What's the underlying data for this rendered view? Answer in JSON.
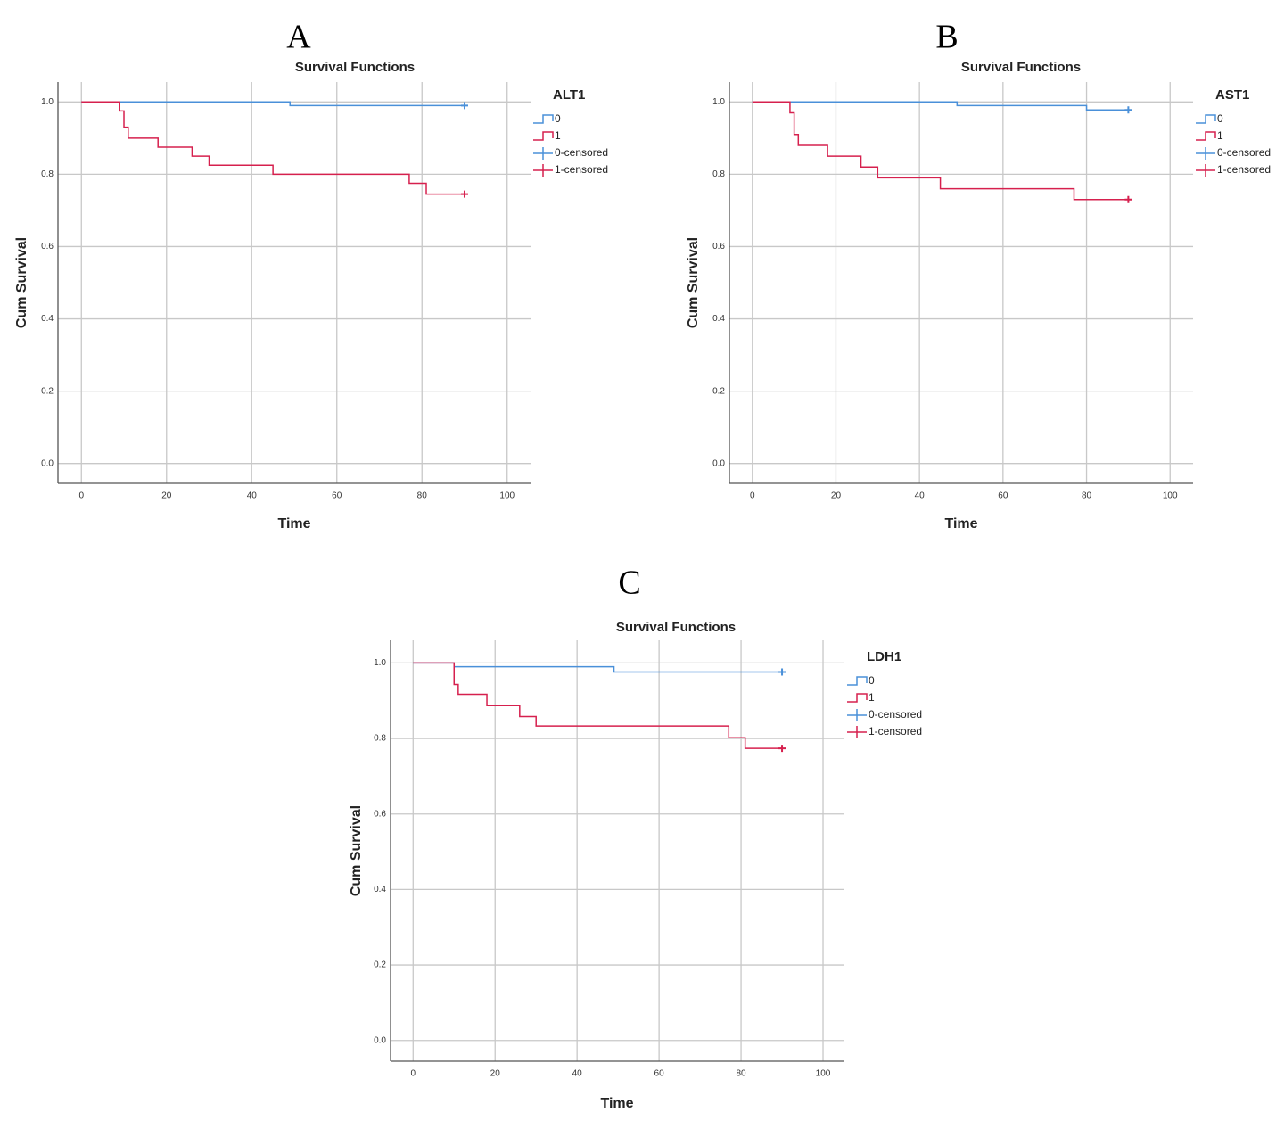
{
  "chart_data": [
    {
      "type": "line",
      "panel": "A",
      "title": "Survival Functions",
      "x_label": "Time",
      "y_label": "Cum Survival",
      "legend_title": "ALT1",
      "xlim": [
        -5.5,
        105.5
      ],
      "ylim": [
        -0.055,
        1.055
      ],
      "xticks": [
        0,
        20,
        40,
        60,
        80,
        100
      ],
      "yticks": [
        {
          "value": 0,
          "label": "0.0"
        },
        0.2,
        0.4,
        0.6,
        0.8,
        {
          "value": 1,
          "label": "1.0"
        }
      ],
      "grid": true,
      "series": [
        {
          "name": "0",
          "style": "step",
          "color": "#4a90d9",
          "x": [
            0,
            49,
            90
          ],
          "values": [
            1,
            0.99,
            0.99
          ]
        },
        {
          "name": "1",
          "style": "step",
          "color": "#d6204e",
          "x": [
            0,
            9,
            10,
            11,
            18,
            26,
            30,
            45,
            77,
            81,
            90
          ],
          "values": [
            1,
            0.975,
            0.93,
            0.9,
            0.875,
            0.85,
            0.825,
            0.8,
            0.775,
            0.745,
            0.745
          ]
        },
        {
          "name": "0-censored",
          "style": "censor",
          "color": "#4a90d9",
          "x": [
            90
          ],
          "values": [
            0.99
          ]
        },
        {
          "name": "1-censored",
          "style": "censor",
          "color": "#d6204e",
          "x": [
            90
          ],
          "values": [
            0.745
          ]
        }
      ]
    },
    {
      "type": "line",
      "panel": "B",
      "title": "Survival Functions",
      "x_label": "Time",
      "y_label": "Cum Survival",
      "legend_title": "AST1",
      "xlim": [
        -5.5,
        105.5
      ],
      "ylim": [
        -0.055,
        1.055
      ],
      "xticks": [
        0,
        20,
        40,
        60,
        80,
        100
      ],
      "yticks": [
        {
          "value": 0,
          "label": "0.0"
        },
        0.2,
        0.4,
        0.6,
        0.8,
        {
          "value": 1,
          "label": "1.0"
        }
      ],
      "grid": true,
      "series": [
        {
          "name": "0",
          "style": "step",
          "color": "#4a90d9",
          "x": [
            0,
            49,
            80,
            90
          ],
          "values": [
            1,
            0.99,
            0.978,
            0.978
          ]
        },
        {
          "name": "1",
          "style": "step",
          "color": "#d6204e",
          "x": [
            0,
            9,
            10,
            11,
            18,
            26,
            30,
            45,
            77,
            90
          ],
          "values": [
            1,
            0.97,
            0.91,
            0.88,
            0.85,
            0.82,
            0.79,
            0.76,
            0.73,
            0.73
          ]
        },
        {
          "name": "0-censored",
          "style": "censor",
          "color": "#4a90d9",
          "x": [
            90
          ],
          "values": [
            0.978
          ]
        },
        {
          "name": "1-censored",
          "style": "censor",
          "color": "#d6204e",
          "x": [
            90
          ],
          "values": [
            0.73
          ]
        }
      ]
    },
    {
      "type": "line",
      "panel": "C",
      "title": "Survival Functions",
      "x_label": "Time",
      "y_label": "Cum Survival",
      "legend_title": "LDH1",
      "xlim": [
        -5.5,
        105
      ],
      "ylim": [
        -0.055,
        1.06
      ],
      "xticks": [
        0,
        20,
        40,
        60,
        80,
        100
      ],
      "yticks": [
        {
          "value": 0,
          "label": "0.0"
        },
        0.2,
        0.4,
        0.6,
        0.8,
        {
          "value": 1,
          "label": "1.0"
        }
      ],
      "grid": true,
      "series": [
        {
          "name": "0",
          "style": "step",
          "color": "#4a90d9",
          "x": [
            0,
            10,
            49,
            90
          ],
          "values": [
            1,
            0.99,
            0.976,
            0.976
          ]
        },
        {
          "name": "1",
          "style": "step",
          "color": "#d6204e",
          "x": [
            0,
            10,
            11,
            18,
            26,
            30,
            77,
            81,
            90
          ],
          "values": [
            1,
            0.943,
            0.917,
            0.887,
            0.858,
            0.833,
            0.802,
            0.774,
            0.774
          ]
        },
        {
          "name": "0-censored",
          "style": "censor",
          "color": "#4a90d9",
          "x": [
            90
          ],
          "values": [
            0.976
          ]
        },
        {
          "name": "1-censored",
          "style": "censor",
          "color": "#d6204e",
          "x": [
            90
          ],
          "values": [
            0.774
          ]
        }
      ]
    }
  ]
}
